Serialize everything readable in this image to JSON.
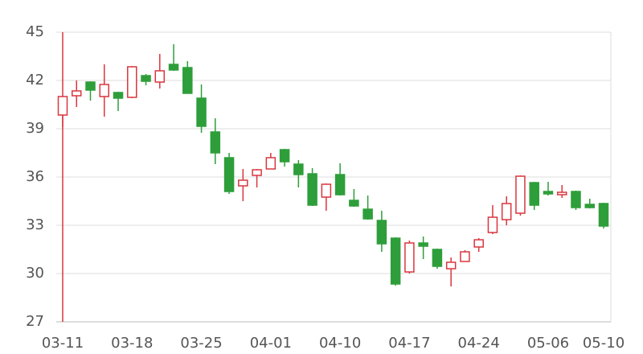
{
  "chart_data": {
    "type": "candlestick",
    "categories": [
      "03-11",
      null,
      null,
      null,
      null,
      "03-18",
      null,
      null,
      null,
      null,
      "03-25",
      null,
      null,
      null,
      null,
      "04-01",
      null,
      null,
      null,
      null,
      "04-10",
      null,
      null,
      null,
      null,
      "04-17",
      null,
      null,
      null,
      null,
      "04-24",
      null,
      null,
      null,
      null,
      "05-06",
      null,
      null,
      null,
      "05-10"
    ],
    "open": [
      39.85,
      41.05,
      41.9,
      41.0,
      41.25,
      40.95,
      42.3,
      41.9,
      43.0,
      42.8,
      40.9,
      38.8,
      37.2,
      35.45,
      36.1,
      36.5,
      37.7,
      36.8,
      36.2,
      34.75,
      36.15,
      34.55,
      34.0,
      33.3,
      32.2,
      30.1,
      31.9,
      31.5,
      30.3,
      30.75,
      31.65,
      32.55,
      33.35,
      33.75,
      35.65,
      35.1,
      34.9,
      35.1,
      34.3,
      34.35
    ],
    "close": [
      41.0,
      41.35,
      41.4,
      41.75,
      40.9,
      42.85,
      41.95,
      42.6,
      42.65,
      41.2,
      39.15,
      37.5,
      35.1,
      35.8,
      36.45,
      37.2,
      36.95,
      36.15,
      34.25,
      35.55,
      34.9,
      34.2,
      33.4,
      31.85,
      29.35,
      31.9,
      31.7,
      30.45,
      30.7,
      31.35,
      32.1,
      33.5,
      34.35,
      36.05,
      34.25,
      34.95,
      35.05,
      34.1,
      34.1,
      32.95
    ],
    "low": [
      39.1,
      40.35,
      40.75,
      39.75,
      40.1,
      40.9,
      41.7,
      41.5,
      42.6,
      41.2,
      38.75,
      36.8,
      34.95,
      34.5,
      35.35,
      36.5,
      36.65,
      35.35,
      34.2,
      33.9,
      34.85,
      34.15,
      33.35,
      31.35,
      29.25,
      30.0,
      30.9,
      30.3,
      29.2,
      30.75,
      31.35,
      32.45,
      33.0,
      33.6,
      33.95,
      34.85,
      34.7,
      33.95,
      34.05,
      32.8
    ],
    "high": [
      41.05,
      42.0,
      41.95,
      43.0,
      41.3,
      42.9,
      42.4,
      43.65,
      44.25,
      43.2,
      41.75,
      39.65,
      37.5,
      36.5,
      36.5,
      37.5,
      37.75,
      37.05,
      36.55,
      35.6,
      36.85,
      35.25,
      34.85,
      33.9,
      32.25,
      32.05,
      32.3,
      31.55,
      31.0,
      31.45,
      32.2,
      34.25,
      34.8,
      36.1,
      35.7,
      35.7,
      35.5,
      35.15,
      34.65,
      34.4
    ],
    "up_color": "#d9363e",
    "down_color": "#2e9e3a",
    "ylim": [
      27,
      45
    ],
    "yticks": [
      27,
      30,
      33,
      36,
      39,
      42,
      45
    ],
    "grid": true
  }
}
